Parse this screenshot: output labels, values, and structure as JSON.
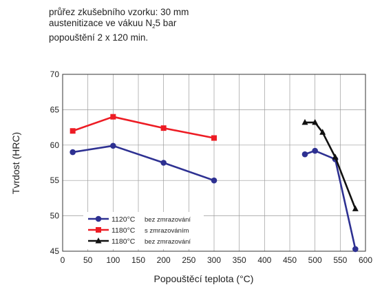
{
  "notes": {
    "line1": "průřez zkušebního vzorku: 30 mm",
    "line2_pre": "austenitizace ve vákuu N",
    "line2_sub": "2",
    "line2_post": "5 bar",
    "line3": "popouštění 2 x 120 min."
  },
  "chart_data": {
    "type": "line",
    "xlabel": "Popouštěcí teplota (°C)",
    "ylabel": "Tvrdost (HRC)",
    "xlim": [
      0,
      600
    ],
    "ylim": [
      45,
      70
    ],
    "xticks": [
      0,
      50,
      100,
      150,
      200,
      250,
      300,
      350,
      400,
      450,
      500,
      550,
      600
    ],
    "yticks": [
      45,
      50,
      55,
      60,
      65,
      70
    ],
    "grid": true,
    "legend_position": "bottom-left",
    "series": [
      {
        "name": "1120°C",
        "note": "bez zmrazování",
        "color": "#2e3192",
        "marker": "circle",
        "segments": [
          [
            [
              20,
              59.0
            ],
            [
              100,
              59.9
            ],
            [
              200,
              57.5
            ],
            [
              300,
              55.0
            ]
          ],
          [
            [
              480,
              58.7
            ],
            [
              500,
              59.2
            ],
            [
              540,
              58.0
            ],
            [
              580,
              45.3
            ]
          ]
        ]
      },
      {
        "name": "1180°C",
        "note": "s zmrazováním",
        "color": "#ed1c24",
        "marker": "square",
        "segments": [
          [
            [
              20,
              62.0
            ],
            [
              100,
              64.0
            ],
            [
              200,
              62.4
            ],
            [
              300,
              61.0
            ]
          ]
        ]
      },
      {
        "name": "1180°C",
        "note": "bez zmrazování",
        "color": "#111111",
        "marker": "triangle",
        "segments": [
          [
            [
              480,
              63.2
            ],
            [
              500,
              63.2
            ],
            [
              515,
              61.8
            ],
            [
              540,
              58.3
            ],
            [
              580,
              51.0
            ]
          ]
        ]
      }
    ]
  }
}
